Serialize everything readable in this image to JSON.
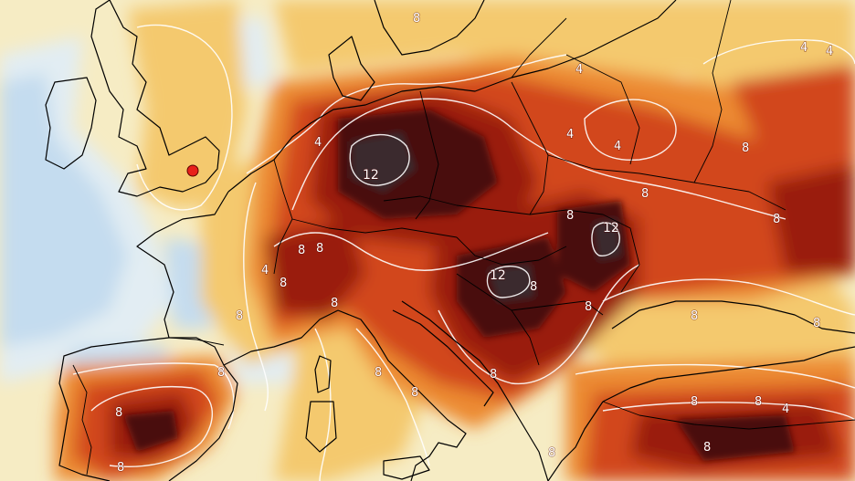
{
  "map": {
    "palette": {
      "cold": "#c4dcef",
      "cool": "#e2edf3",
      "neutral": "#f6ecc4",
      "warm": "#f4c96e",
      "hot": "#ec8a30",
      "hotter": "#d2461a",
      "hottest": "#9a1c0c",
      "extreme": "#4a0a0c",
      "peak": "#3a2a2e",
      "contour": "#ffffff",
      "coastline": "#000000",
      "marker": "#e8201a"
    },
    "contour_labels": {
      "four": "4",
      "eight": "8",
      "twelve": "12"
    },
    "marker_name": "red-dot-marker"
  }
}
